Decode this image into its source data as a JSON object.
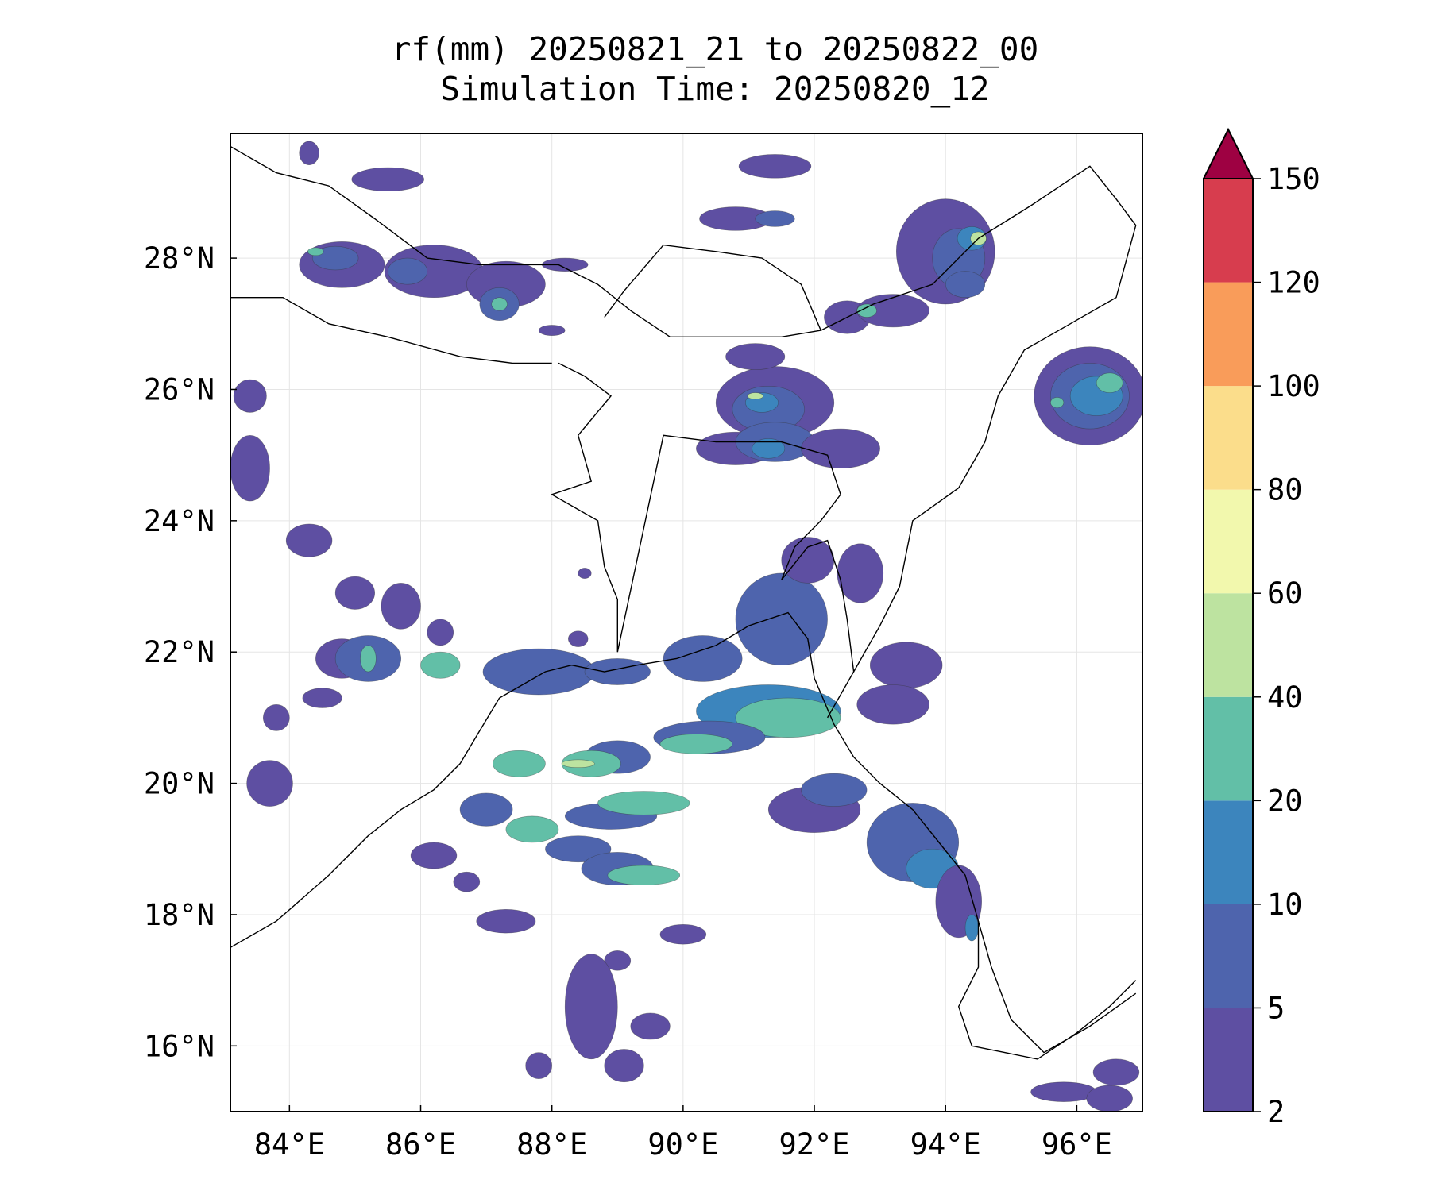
{
  "title": {
    "line1": "rf(mm) 20250821_21 to 20250822_00",
    "line2": "Simulation Time: 20250820_12"
  },
  "map": {
    "lon_range": [
      83.1,
      97.0
    ],
    "lat_range": [
      15.0,
      29.9
    ],
    "lat_ticks": [
      {
        "value": 16,
        "label": "16°N"
      },
      {
        "value": 18,
        "label": "18°N"
      },
      {
        "value": 20,
        "label": "20°N"
      },
      {
        "value": 22,
        "label": "22°N"
      },
      {
        "value": 24,
        "label": "24°N"
      },
      {
        "value": 26,
        "label": "26°N"
      },
      {
        "value": 28,
        "label": "28°N"
      }
    ],
    "lon_ticks": [
      {
        "value": 84,
        "label": "84°E"
      },
      {
        "value": 86,
        "label": "86°E"
      },
      {
        "value": 88,
        "label": "88°E"
      },
      {
        "value": 90,
        "label": "90°E"
      },
      {
        "value": 92,
        "label": "92°E"
      },
      {
        "value": 94,
        "label": "94°E"
      },
      {
        "value": 96,
        "label": "96°E"
      }
    ],
    "gridlines": true
  },
  "colorbar": {
    "levels": [
      "2",
      "5",
      "10",
      "20",
      "40",
      "60",
      "80",
      "100",
      "120",
      "150"
    ],
    "colors": [
      "#5e4fa2",
      "#4e64ad",
      "#3c85bd",
      "#62bfa7",
      "#bde3a0",
      "#f2f8ad",
      "#fbdd8b",
      "#f99c5a",
      "#d73d4e"
    ],
    "extend_color": "#9e0142",
    "extend": "max"
  },
  "rain_colors": {
    "c1": "#5e4fa2",
    "c2": "#4e64ad",
    "c3": "#3c85bd",
    "c4": "#62bfa7",
    "c5": "#bde3a0",
    "c6": "#f2f8ad"
  }
}
